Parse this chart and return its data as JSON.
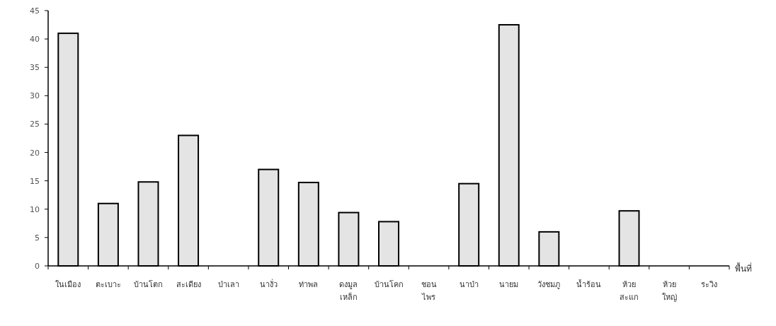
{
  "chart_data": {
    "type": "bar",
    "xlabel": "พื้นที่",
    "categories": [
      "ในเมือง",
      "ตะเบาะ",
      "บ้านโตก",
      "สะเดียง",
      "ป่าเลา",
      "นางั่ว",
      "ท่าพล",
      "ดงมูล\nเหล็ก",
      "บ้านโคก",
      "ชอน\nไพร",
      "นาป่า",
      "นายม",
      "วังชมภู",
      "น้ำร้อน",
      "ห้วย\nสะแก",
      "ห้วย\nใหญ่",
      "ระวิง"
    ],
    "series": [
      {
        "color": "#e4e4e4",
        "values": [
          41,
          11,
          14.8,
          23,
          0,
          17,
          14.7,
          9.4,
          7.8,
          0,
          14.5,
          42.5,
          6,
          0,
          9.7,
          0,
          0
        ]
      }
    ],
    "ylim": [
      0,
      45
    ],
    "yticks": [
      0,
      5,
      10,
      15,
      20,
      25,
      30,
      35,
      40,
      45
    ],
    "grid": false
  }
}
